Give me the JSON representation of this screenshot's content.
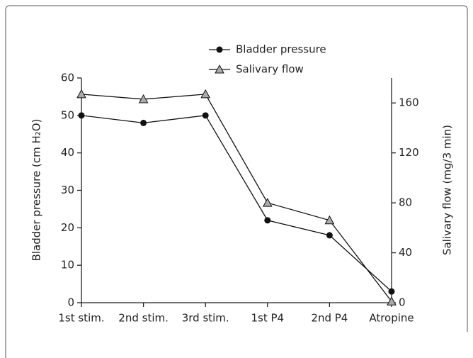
{
  "chart_data": {
    "type": "line",
    "categories": [
      "1st stim.",
      "2nd stim.",
      "3rd stim.",
      "1st P4",
      "2nd P4",
      "Atropine"
    ],
    "ylabel": "Bladder pressure (cm H₂O)",
    "y2label": "Salivary flow (mg/3 min)",
    "ylim": [
      0,
      60
    ],
    "yticks": [
      0,
      10,
      20,
      30,
      40,
      50,
      60
    ],
    "y2lim": [
      0,
      180
    ],
    "y2ticks": [
      0,
      40,
      80,
      120,
      160
    ],
    "series": [
      {
        "name": "Bladder pressure",
        "color": "#111111",
        "marker": "circle",
        "values": [
          50,
          48,
          50,
          22,
          18,
          3
        ]
      },
      {
        "name": "Salivary flow",
        "color": "#111111",
        "marker": "triangle",
        "axis": "y2",
        "values": [
          167,
          163,
          167,
          80,
          66,
          1
        ]
      }
    ]
  }
}
